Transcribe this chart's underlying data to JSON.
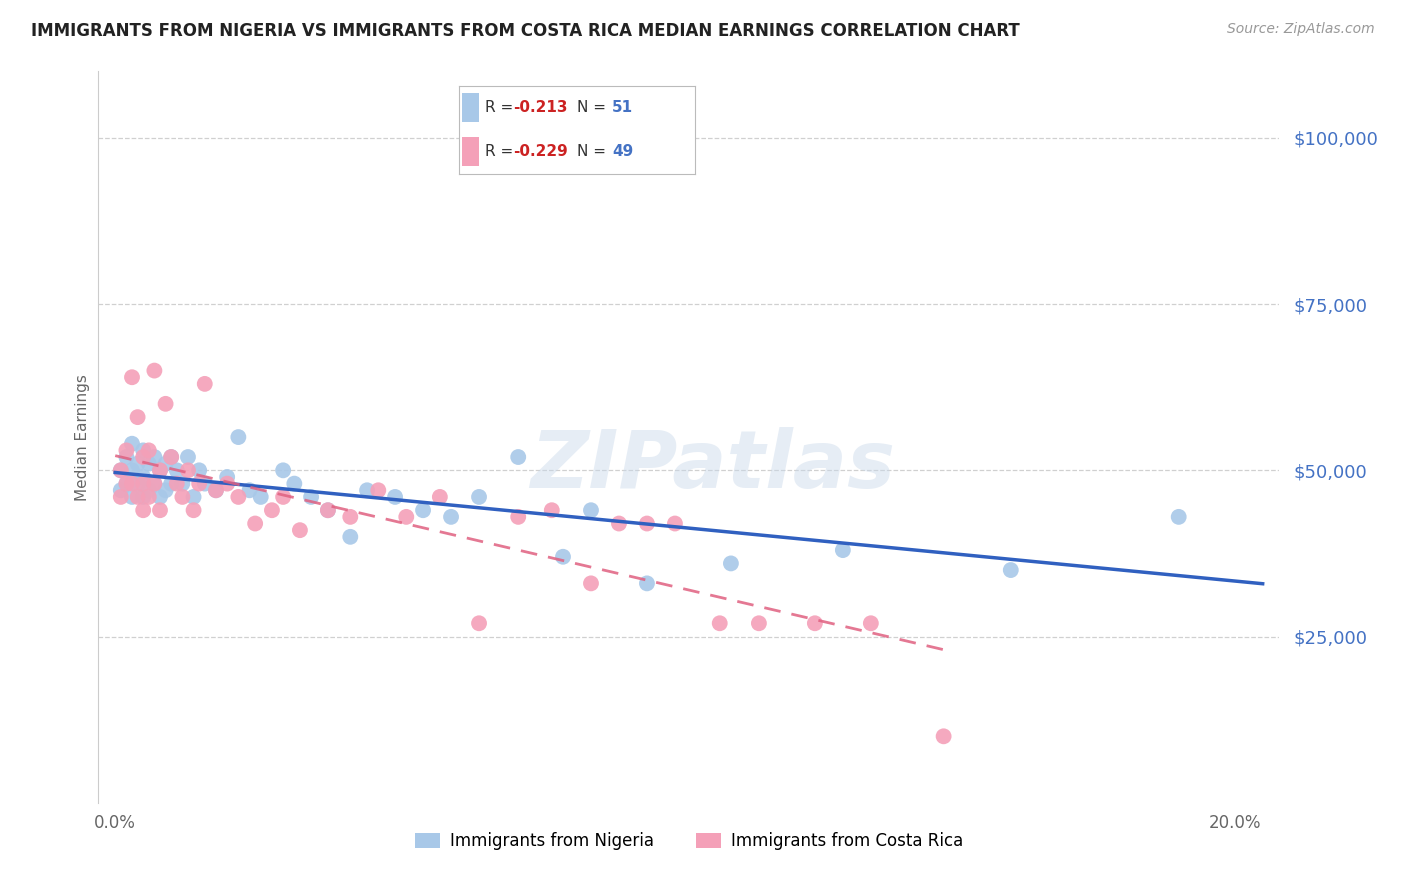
{
  "title": "IMMIGRANTS FROM NIGERIA VS IMMIGRANTS FROM COSTA RICA MEDIAN EARNINGS CORRELATION CHART",
  "source": "Source: ZipAtlas.com",
  "ylabel": "Median Earnings",
  "xlabel_ticks": [
    "0.0%",
    "20.0%"
  ],
  "xlabel_vals": [
    0.0,
    0.2
  ],
  "ytick_labels": [
    "$100,000",
    "$75,000",
    "$50,000",
    "$25,000"
  ],
  "ytick_vals": [
    100000,
    75000,
    50000,
    25000
  ],
  "ylim": [
    0,
    110000
  ],
  "xlim": [
    -0.003,
    0.208
  ],
  "nigeria_R": -0.213,
  "nigeria_N": 51,
  "costarica_R": -0.229,
  "costarica_N": 49,
  "nigeria_color": "#a8c8e8",
  "costarica_color": "#f4a0b8",
  "nigeria_line_color": "#3060c0",
  "costarica_line_color": "#e06080",
  "watermark": "ZIPatlas",
  "nigeria_x": [
    0.001,
    0.001,
    0.002,
    0.002,
    0.003,
    0.003,
    0.003,
    0.004,
    0.004,
    0.005,
    0.005,
    0.005,
    0.006,
    0.006,
    0.007,
    0.007,
    0.008,
    0.008,
    0.009,
    0.009,
    0.01,
    0.01,
    0.011,
    0.012,
    0.013,
    0.014,
    0.015,
    0.016,
    0.018,
    0.02,
    0.022,
    0.024,
    0.026,
    0.03,
    0.032,
    0.035,
    0.038,
    0.042,
    0.045,
    0.05,
    0.055,
    0.06,
    0.065,
    0.072,
    0.08,
    0.085,
    0.095,
    0.11,
    0.13,
    0.16,
    0.19
  ],
  "nigeria_y": [
    50000,
    47000,
    52000,
    48000,
    54000,
    50000,
    46000,
    51000,
    48000,
    53000,
    49000,
    46000,
    51000,
    47000,
    52000,
    48000,
    50000,
    46000,
    51000,
    47000,
    52000,
    48000,
    50000,
    48000,
    52000,
    46000,
    50000,
    48000,
    47000,
    49000,
    55000,
    47000,
    46000,
    50000,
    48000,
    46000,
    44000,
    40000,
    47000,
    46000,
    44000,
    43000,
    46000,
    52000,
    37000,
    44000,
    33000,
    36000,
    38000,
    35000,
    43000
  ],
  "costarica_x": [
    0.001,
    0.001,
    0.002,
    0.002,
    0.003,
    0.003,
    0.004,
    0.004,
    0.005,
    0.005,
    0.005,
    0.006,
    0.006,
    0.007,
    0.007,
    0.008,
    0.008,
    0.009,
    0.01,
    0.011,
    0.012,
    0.013,
    0.014,
    0.015,
    0.016,
    0.018,
    0.02,
    0.022,
    0.025,
    0.028,
    0.03,
    0.033,
    0.038,
    0.042,
    0.047,
    0.052,
    0.058,
    0.065,
    0.072,
    0.078,
    0.085,
    0.09,
    0.095,
    0.1,
    0.108,
    0.115,
    0.125,
    0.135,
    0.148
  ],
  "costarica_y": [
    50000,
    46000,
    53000,
    48000,
    64000,
    48000,
    58000,
    46000,
    52000,
    48000,
    44000,
    53000,
    46000,
    65000,
    48000,
    50000,
    44000,
    60000,
    52000,
    48000,
    46000,
    50000,
    44000,
    48000,
    63000,
    47000,
    48000,
    46000,
    42000,
    44000,
    46000,
    41000,
    44000,
    43000,
    47000,
    43000,
    46000,
    27000,
    43000,
    44000,
    33000,
    42000,
    42000,
    42000,
    27000,
    27000,
    27000,
    27000,
    10000
  ]
}
